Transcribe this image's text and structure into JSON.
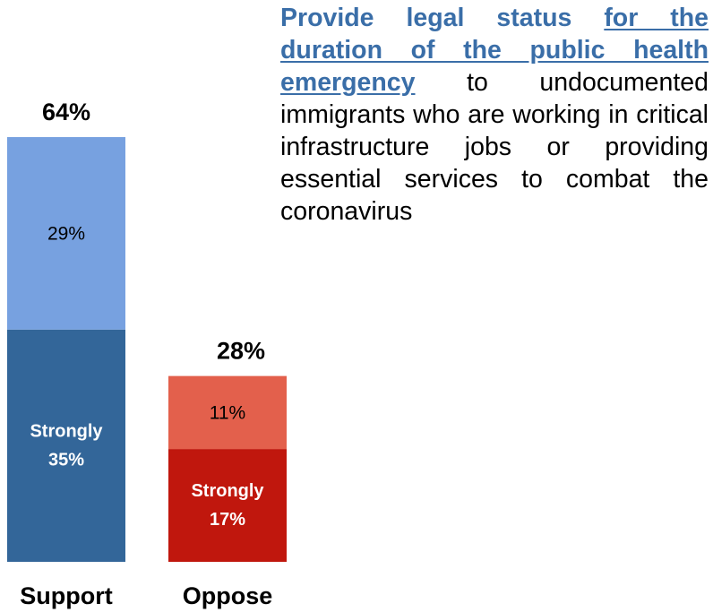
{
  "question": {
    "lead": "Provide legal status",
    "emphasis": "for the duration of the public health emergency",
    "rest": "to undocumented immigrants who are working in critical infrastructure jobs or providing essential services to combat the coronavirus"
  },
  "colors": {
    "support_strong": "#336699",
    "support_somewhat": "#77a1e0",
    "oppose_strong": "#c0170d",
    "oppose_somewhat": "#e3604c",
    "total_text": "#000000",
    "segment_text_light": "#ffffff",
    "segment_text_dark": "#000000"
  },
  "chart_data": {
    "type": "bar",
    "stacked": true,
    "categories": [
      "Support",
      "Oppose"
    ],
    "totals": [
      64,
      28
    ],
    "total_labels": [
      "64%",
      "28%"
    ],
    "series": [
      {
        "name": "Strongly",
        "values": [
          35,
          17
        ],
        "labels": [
          "Strongly\n35%",
          "Strongly\n17%"
        ]
      },
      {
        "values": [
          29,
          11
        ],
        "labels": [
          "29%",
          "11%"
        ]
      }
    ],
    "ylim": [
      0,
      64
    ],
    "grid": false,
    "legend": "none"
  }
}
